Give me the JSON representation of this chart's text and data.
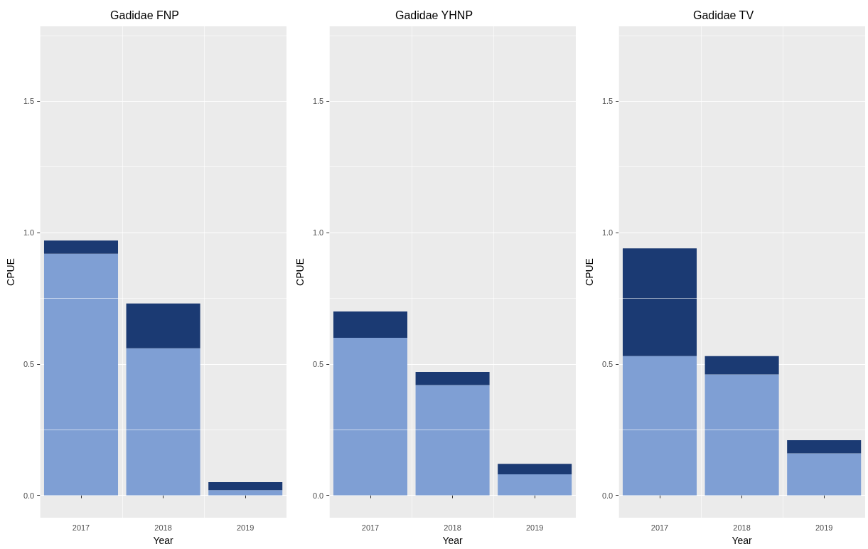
{
  "chart_data": [
    {
      "type": "bar",
      "title": "Gadidae FNP",
      "xlabel": "Year",
      "ylabel": "CPUE",
      "categories": [
        "2017",
        "2018",
        "2019"
      ],
      "stacked": true,
      "series": [
        {
          "color": "#7f9fd4",
          "values": [
            0.92,
            0.56,
            0.02
          ]
        },
        {
          "color": "#1b3a73",
          "values": [
            0.05,
            0.17,
            0.03
          ]
        }
      ],
      "ylim": [
        -0.085,
        1.785
      ],
      "yticks": [
        {
          "value": 0,
          "label": "0.0"
        },
        {
          "value": 0.5,
          "label": "0.5"
        },
        {
          "value": 1,
          "label": "1.0"
        },
        {
          "value": 1.5,
          "label": "1.5"
        }
      ],
      "grid": true
    },
    {
      "type": "bar",
      "title": "Gadidae YHNP",
      "xlabel": "Year",
      "ylabel": "CPUE",
      "categories": [
        "2017",
        "2018",
        "2019"
      ],
      "stacked": true,
      "series": [
        {
          "color": "#7f9fd4",
          "values": [
            0.6,
            0.42,
            0.08
          ]
        },
        {
          "color": "#1b3a73",
          "values": [
            0.1,
            0.05,
            0.04
          ]
        }
      ],
      "ylim": [
        -0.085,
        1.785
      ],
      "yticks": [
        {
          "value": 0,
          "label": "0.0"
        },
        {
          "value": 0.5,
          "label": "0.5"
        },
        {
          "value": 1,
          "label": "1.0"
        },
        {
          "value": 1.5,
          "label": "1.5"
        }
      ],
      "grid": true
    },
    {
      "type": "bar",
      "title": "Gadidae TV",
      "xlabel": "Year",
      "ylabel": "CPUE",
      "categories": [
        "2017",
        "2018",
        "2019"
      ],
      "stacked": true,
      "series": [
        {
          "color": "#7f9fd4",
          "values": [
            0.53,
            0.46,
            0.16
          ]
        },
        {
          "color": "#1b3a73",
          "values": [
            0.41,
            0.07,
            0.05
          ]
        }
      ],
      "ylim": [
        -0.085,
        1.785
      ],
      "yticks": [
        {
          "value": 0,
          "label": "0.0"
        },
        {
          "value": 0.5,
          "label": "0.5"
        },
        {
          "value": 1,
          "label": "1.0"
        },
        {
          "value": 1.5,
          "label": "1.5"
        }
      ],
      "grid": true
    }
  ]
}
